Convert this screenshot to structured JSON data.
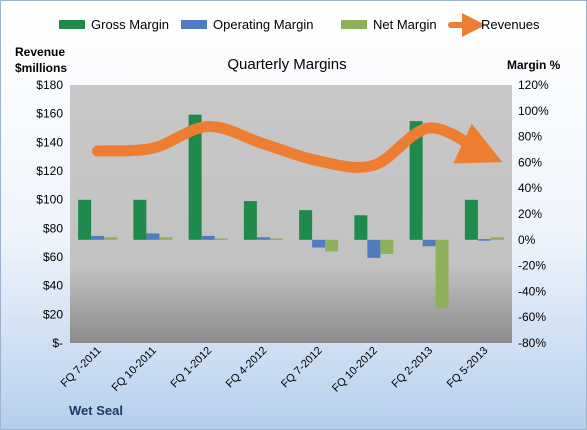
{
  "chart_data": {
    "type": "bar",
    "title": "Quarterly Margins",
    "left_axis_title": [
      "Revenue",
      "$millions"
    ],
    "right_axis_title": "Margin %",
    "company": "Wet Seal",
    "categories": [
      "FQ 7-2011",
      "FQ 10-2011",
      "FQ 1-2012",
      "FQ 4-2012",
      "FQ 7-2012",
      "FQ 10-2012",
      "FQ 2-2013",
      "FQ 5-2013"
    ],
    "left_axis": {
      "min": 0,
      "max": 180,
      "step": 20,
      "tick_labels": [
        "$-",
        "$20",
        "$40",
        "$60",
        "$80",
        "$100",
        "$120",
        "$140",
        "$160",
        "$180"
      ]
    },
    "right_axis": {
      "min": -80,
      "max": 120,
      "step": 20,
      "tick_labels": [
        "-80%",
        "-60%",
        "-40%",
        "-20%",
        "0%",
        "20%",
        "40%",
        "60%",
        "80%",
        "100%",
        "120%"
      ]
    },
    "series": [
      {
        "name": "Gross Margin",
        "type": "bar",
        "axis": "right",
        "color": "#1e8a4c",
        "values": [
          31,
          31,
          97,
          30,
          23,
          19,
          92,
          31
        ]
      },
      {
        "name": "Operating Margin",
        "type": "bar",
        "axis": "right",
        "color": "#4f7cc0",
        "values": [
          3,
          5,
          3,
          2,
          -6,
          -14,
          -5,
          0.5
        ]
      },
      {
        "name": "Net Margin",
        "type": "bar",
        "axis": "right",
        "color": "#8fb05a",
        "values": [
          2,
          2,
          1,
          1,
          -9,
          -11,
          -53,
          2
        ]
      },
      {
        "name": "Revenues",
        "type": "line",
        "axis": "left",
        "color": "#ed7d31",
        "values": [
          134,
          136,
          151,
          139,
          127,
          124,
          150,
          132
        ]
      }
    ],
    "legend_position": "top",
    "grid": false
  }
}
